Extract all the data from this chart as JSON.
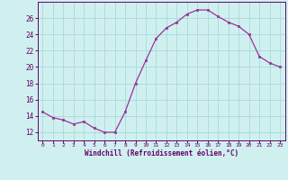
{
  "x": [
    0,
    1,
    2,
    3,
    4,
    5,
    6,
    7,
    8,
    9,
    10,
    11,
    12,
    13,
    14,
    15,
    16,
    17,
    18,
    19,
    20,
    21,
    22,
    23
  ],
  "y": [
    14.5,
    13.8,
    13.5,
    13.0,
    13.3,
    12.5,
    12.0,
    12.0,
    14.5,
    18.0,
    20.8,
    23.5,
    24.8,
    25.5,
    26.5,
    27.0,
    27.0,
    26.2,
    25.5,
    25.0,
    24.0,
    21.3,
    20.5,
    20.0
  ],
  "line_color": "#993399",
  "marker": "s",
  "marker_size": 2,
  "bg_color": "#d0f0f0",
  "grid_color": "#aadddd",
  "xlabel": "Windchill (Refroidissement éolien,°C)",
  "xlabel_color": "#660066",
  "tick_color": "#660066",
  "ylim": [
    11,
    28
  ],
  "yticks": [
    12,
    14,
    16,
    18,
    20,
    22,
    24,
    26
  ],
  "xlim": [
    -0.5,
    23.5
  ],
  "xticks": [
    0,
    1,
    2,
    3,
    4,
    5,
    6,
    7,
    8,
    9,
    10,
    11,
    12,
    13,
    14,
    15,
    16,
    17,
    18,
    19,
    20,
    21,
    22,
    23
  ],
  "xtick_labels": [
    "0",
    "1",
    "2",
    "3",
    "4",
    "5",
    "6",
    "7",
    "8",
    "9",
    "10",
    "11",
    "12",
    "13",
    "14",
    "15",
    "16",
    "17",
    "18",
    "19",
    "20",
    "21",
    "22",
    "23"
  ]
}
